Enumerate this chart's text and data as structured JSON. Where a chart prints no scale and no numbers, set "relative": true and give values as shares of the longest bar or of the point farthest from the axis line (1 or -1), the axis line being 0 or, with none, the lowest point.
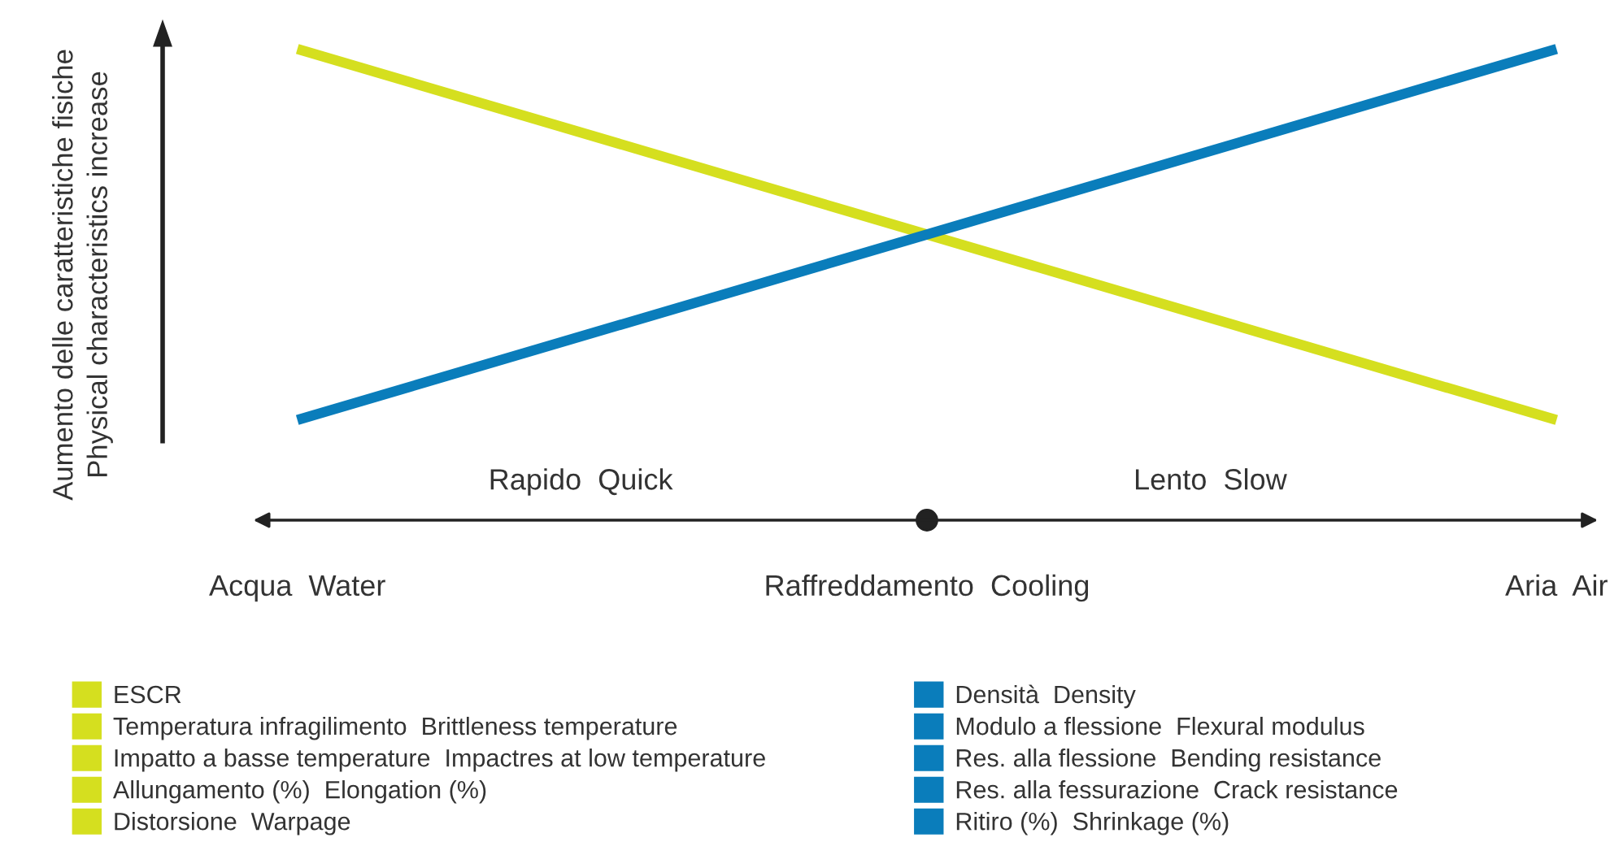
{
  "chart_data": {
    "type": "line",
    "relative": true,
    "categories": [
      "Acqua  Water",
      "Raffreddamento  Cooling",
      "Aria  Air"
    ],
    "ylabel": "Aumento delle caratteristiche fisiche\nPhysical characteristics increase",
    "annotations": [
      "Rapido  Quick",
      "Lento  Slow"
    ],
    "series": [
      {
        "name": "ESCR\nTemperatura infragilimento  Brittleness temperature\nImpatto a basse temperature  Impactres at low temperature\nAllungamento (%)  Elongation (%)\nDistorsione  Warpage",
        "color": "#d5df1f",
        "values": [
          1,
          0.5,
          0
        ]
      },
      {
        "name": "Densità  Density\nModulo a flessione  Flexural modulus\nRes. alla flessione  Bending resistance\nRes. alla fessurazione  Crack resistance\nRitiro (%)  Shrinkage (%)",
        "color": "#0a7dbb",
        "values": [
          0,
          0.5,
          1
        ]
      }
    ],
    "legend": "bottom",
    "grid": false,
    "marker": "none",
    "line_style": "solid"
  }
}
